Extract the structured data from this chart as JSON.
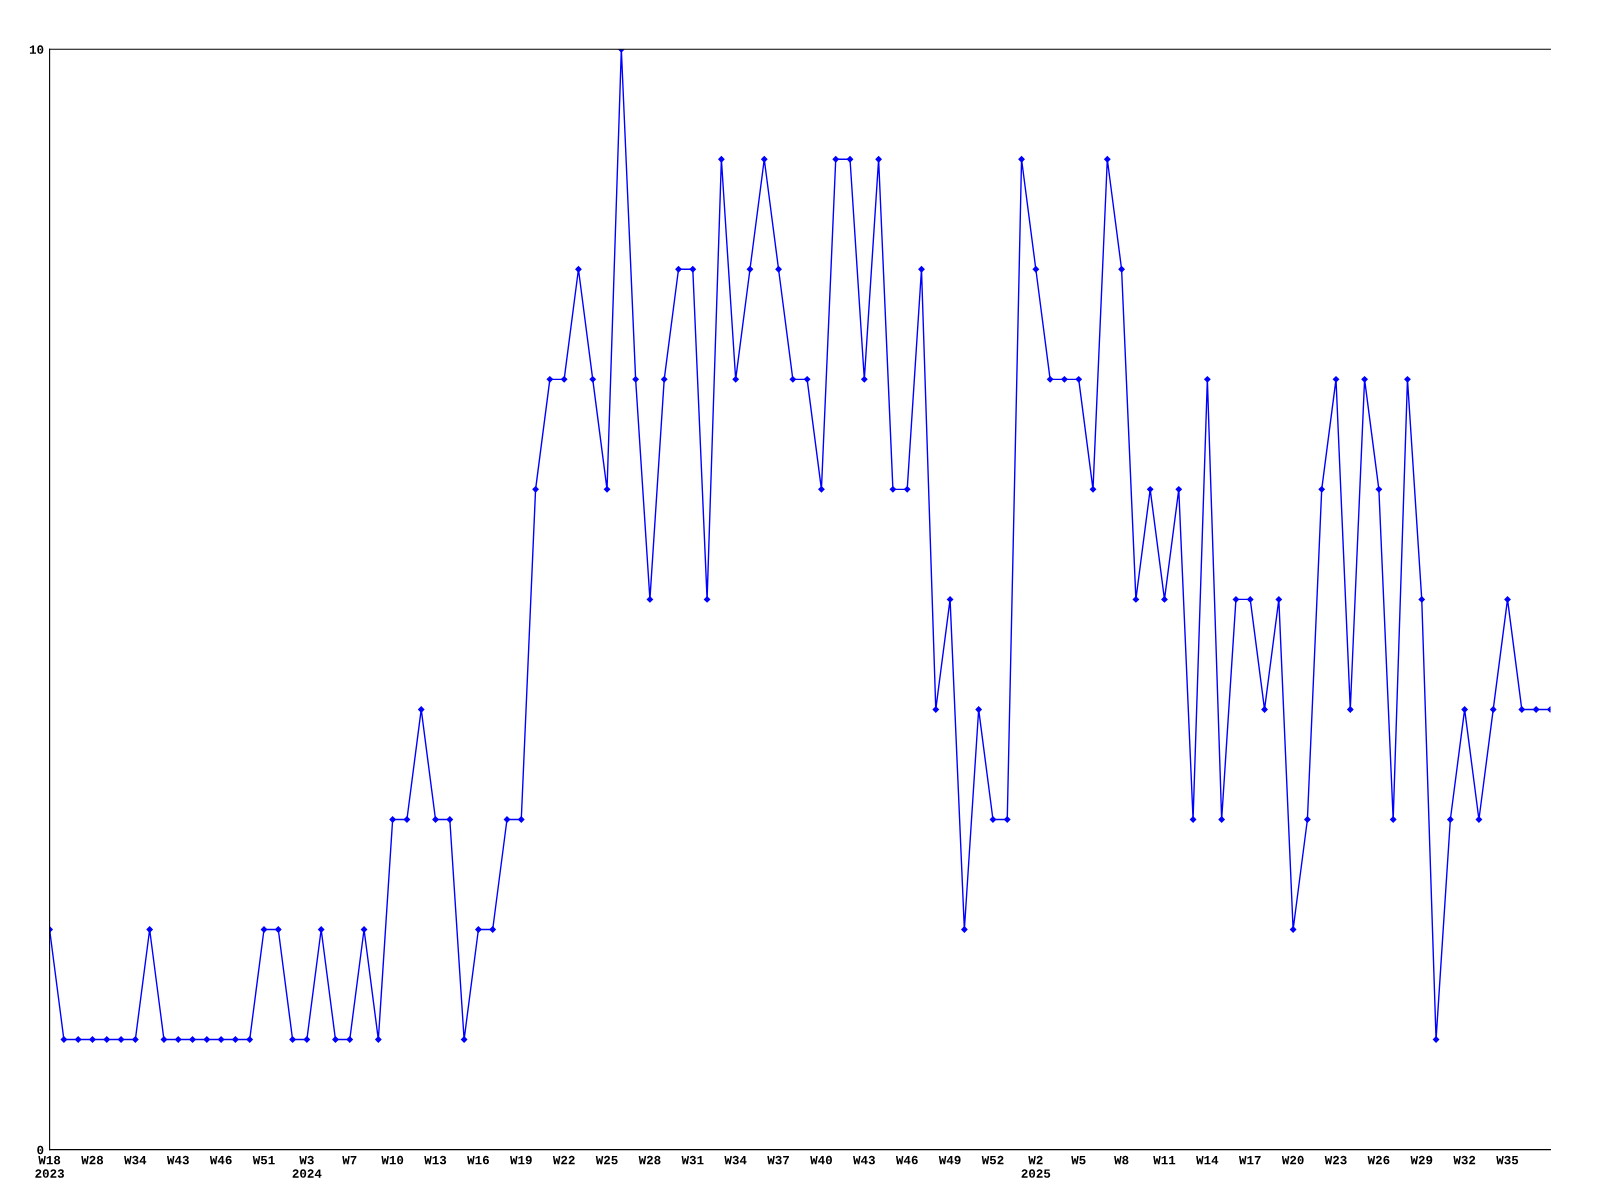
{
  "chart_data": {
    "type": "line",
    "categories": [
      "W18\n2023",
      null,
      null,
      "W28",
      null,
      null,
      "W34",
      null,
      null,
      "W43",
      null,
      null,
      "W46",
      null,
      null,
      "W51",
      null,
      null,
      "W3\n2024",
      null,
      null,
      "W7",
      null,
      null,
      "W10",
      null,
      null,
      "W13",
      null,
      null,
      "W16",
      null,
      null,
      "W19",
      null,
      null,
      "W22",
      null,
      null,
      "W25",
      null,
      null,
      "W28",
      null,
      null,
      "W31",
      null,
      null,
      "W34",
      null,
      null,
      "W37",
      null,
      null,
      "W40",
      null,
      null,
      "W43",
      null,
      null,
      "W46",
      null,
      null,
      "W49",
      null,
      null,
      "W52",
      null,
      null,
      "W2\n2025",
      null,
      null,
      "W5",
      null,
      null,
      "W8",
      null,
      null,
      "W11",
      null,
      null,
      "W14",
      null,
      null,
      "W17",
      null,
      null,
      "W20",
      null,
      null,
      "W23",
      null,
      null,
      "W26",
      null,
      null,
      "W29",
      null,
      null,
      "W32",
      null,
      null,
      "W35",
      null,
      null,
      null
    ],
    "series": [
      {
        "color": "#0000ff",
        "values": [
          2,
          1,
          1,
          1,
          1,
          1,
          1,
          2,
          1,
          1,
          1,
          1,
          1,
          1,
          1,
          2,
          2,
          1,
          1,
          2,
          1,
          1,
          2,
          1,
          3,
          3,
          4,
          3,
          3,
          1,
          2,
          2,
          3,
          3,
          6,
          7,
          7,
          8,
          7,
          6,
          10,
          7,
          5,
          7,
          8,
          8,
          5,
          9,
          7,
          8,
          9,
          8,
          7,
          7,
          6,
          9,
          9,
          7,
          9,
          6,
          6,
          8,
          4,
          5,
          2,
          4,
          3,
          3,
          9,
          8,
          7,
          7,
          7,
          6,
          9,
          8,
          5,
          6,
          5,
          6,
          3,
          7,
          3,
          5,
          5,
          4,
          5,
          2,
          3,
          6,
          7,
          4,
          7,
          6,
          3,
          7,
          5,
          1,
          3,
          4,
          3,
          4,
          5,
          4,
          4,
          4
        ]
      }
    ],
    "ylim": [
      0,
      10
    ],
    "yticks": [
      0,
      10
    ],
    "grid": false,
    "legend": false,
    "marker": "diamond",
    "line_style": "solid"
  }
}
